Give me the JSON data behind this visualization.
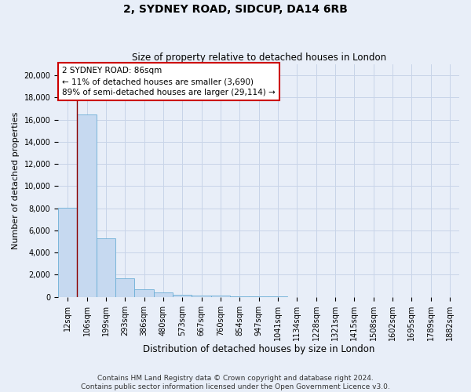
{
  "title": "2, SYDNEY ROAD, SIDCUP, DA14 6RB",
  "subtitle": "Size of property relative to detached houses in London",
  "xlabel": "Distribution of detached houses by size in London",
  "ylabel": "Number of detached properties",
  "bar_labels": [
    "12sqm",
    "106sqm",
    "199sqm",
    "293sqm",
    "386sqm",
    "480sqm",
    "573sqm",
    "667sqm",
    "760sqm",
    "854sqm",
    "947sqm",
    "1041sqm",
    "1134sqm",
    "1228sqm",
    "1321sqm",
    "1415sqm",
    "1508sqm",
    "1602sqm",
    "1695sqm",
    "1789sqm",
    "1882sqm"
  ],
  "bar_values": [
    8050,
    16500,
    5300,
    1700,
    700,
    400,
    200,
    150,
    100,
    50,
    30,
    20,
    10,
    5,
    3,
    2,
    1,
    1,
    1,
    0,
    0
  ],
  "bar_color": "#c6d9f0",
  "bar_edge_color": "#6baed6",
  "annotation_line1": "2 SYDNEY ROAD: 86sqm",
  "annotation_line2": "← 11% of detached houses are smaller (3,690)",
  "annotation_line3": "89% of semi-detached houses are larger (29,114) →",
  "vline_color": "#8b0000",
  "annotation_box_facecolor": "#ffffff",
  "annotation_box_edgecolor": "#cc0000",
  "grid_color": "#c8d4e8",
  "background_color": "#e8eef8",
  "plot_bg_color": "#e8eef8",
  "ylim": [
    0,
    21000
  ],
  "yticks": [
    0,
    2000,
    4000,
    6000,
    8000,
    10000,
    12000,
    14000,
    16000,
    18000,
    20000
  ],
  "title_fontsize": 10,
  "subtitle_fontsize": 8.5,
  "ylabel_fontsize": 8,
  "xlabel_fontsize": 8.5,
  "tick_fontsize": 7,
  "footer": "Contains HM Land Registry data © Crown copyright and database right 2024.\nContains public sector information licensed under the Open Government Licence v3.0.",
  "footer_fontsize": 6.5
}
